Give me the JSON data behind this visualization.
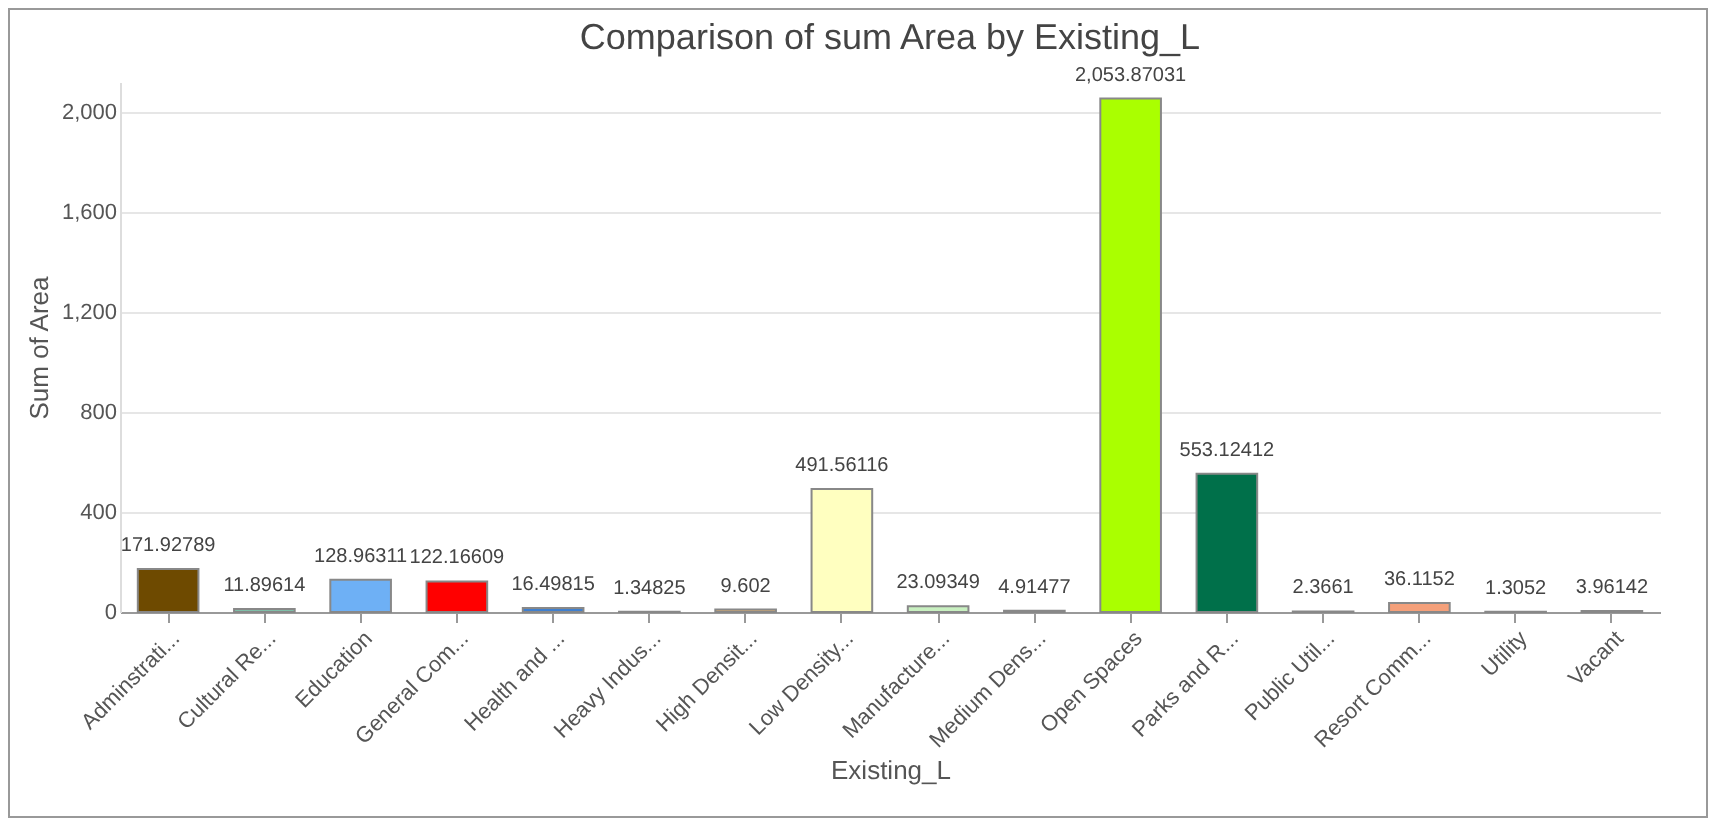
{
  "chart_data": {
    "type": "bar",
    "title": "Comparison of sum Area by Existing_L",
    "xlabel": "Existing_L",
    "ylabel": "Sum of Area",
    "categories": [
      "Adminstrati...",
      "Cultural Re...",
      "Education",
      "General Com...",
      "Health and ...",
      "Heavy Indus...",
      "High Densit...",
      "Low Density...",
      "Manufacture...",
      "Medium Dens...",
      "Open Spaces",
      "Parks and R...",
      "Public Util...",
      "Resort Comm...",
      "Utility",
      "Vacant"
    ],
    "values": [
      171.92789,
      11.89614,
      128.96311,
      122.16609,
      16.49815,
      1.34825,
      9.602,
      491.56116,
      23.09349,
      4.91477,
      2053.87031,
      553.12412,
      2.3661,
      36.1152,
      1.3052,
      3.96142
    ],
    "value_labels": [
      "171.92789",
      "11.89614",
      "128.96311",
      "122.16609",
      "16.49815",
      "1.34825",
      "9.602",
      "491.56116",
      "23.09349",
      "4.91477",
      "2,053.87031",
      "553.12412",
      "2.3661",
      "36.1152",
      "1.3052",
      "3.96142"
    ],
    "colors": [
      "#6e4a00",
      "#7fbfa8",
      "#6eb0f5",
      "#ff0000",
      "#3f7fcf",
      "#7a7a7a",
      "#e0b070",
      "#ffffc0",
      "#c8f0c0",
      "#8b7060",
      "#aaff00",
      "#00704a",
      "#7a7a7a",
      "#f4a07a",
      "#7a7a7a",
      "#7a7a7a"
    ],
    "ylim": [
      0,
      2120
    ],
    "yticks": [
      0,
      400,
      800,
      {
        "value": 1200,
        "label": "1,200"
      },
      {
        "value": 1600,
        "label": "1,600"
      },
      {
        "value": 2000,
        "label": "2,000"
      }
    ],
    "grid": "y"
  }
}
